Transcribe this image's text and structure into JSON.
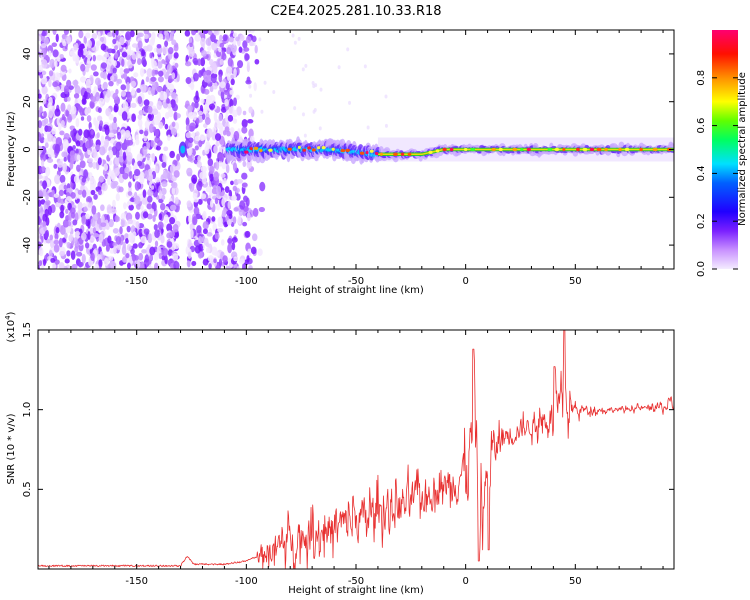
{
  "title": "C2E4.2025.281.10.33.R18",
  "colors": {
    "trace": "#e83030",
    "axis": "#000000",
    "background": "#ffffff"
  },
  "chart_data": [
    {
      "type": "heatmap",
      "name": "spectrogram",
      "xlabel": "Height of straight line (km)",
      "ylabel": "Frequency (Hz)",
      "xlim": [
        -195,
        95
      ],
      "ylim": [
        -50,
        50
      ],
      "xticks": [
        -150,
        -100,
        -50,
        0,
        50
      ],
      "yticks": [
        -40,
        -20,
        0,
        20,
        40
      ],
      "xtick_labels": [
        "-150",
        "-100",
        "-50",
        "0",
        "50"
      ],
      "ytick_labels": [
        "-40",
        "-20",
        "0",
        "20",
        "40"
      ],
      "colorbar": {
        "label": "Normalized spectral amplitude",
        "range": [
          0,
          1
        ],
        "ticks": [
          0.0,
          0.2,
          0.4,
          0.6,
          0.8
        ],
        "tick_labels": [
          "0.0",
          "0.2",
          "0.4",
          "0.6",
          "0.8"
        ],
        "colormap": [
          "#f0e0ff",
          "#a050ff",
          "#5000ff",
          "#0000ff",
          "#00ffff",
          "#00ff00",
          "#ffff00",
          "#ff8000",
          "#ff0000",
          "#ff0080"
        ]
      },
      "features": [
        {
          "description": "scattered noise speckles",
          "x_range": [
            -195,
            -95
          ],
          "y_range": [
            -50,
            50
          ]
        },
        {
          "description": "signal band near zero frequency",
          "points": [
            [
              -105,
              0
            ],
            [
              -80,
              0
            ],
            [
              -60,
              0
            ],
            [
              -40,
              -2
            ],
            [
              -20,
              -2
            ],
            [
              -10,
              0
            ],
            [
              0,
              0
            ],
            [
              20,
              0
            ],
            [
              50,
              0
            ],
            [
              95,
              0
            ]
          ]
        }
      ]
    },
    {
      "type": "line",
      "name": "snr",
      "xlabel": "Height of straight line (km)",
      "ylabel": "SNR (10 * v/v)",
      "scale_label": "(x10",
      "scale_exponent": "4",
      "xlim": [
        -195,
        95
      ],
      "ylim": [
        0,
        1.5
      ],
      "xticks": [
        -150,
        -100,
        -50,
        0,
        50
      ],
      "yticks": [
        0.5,
        1.0,
        1.5
      ],
      "xtick_labels": [
        "-150",
        "-100",
        "-50",
        "0",
        "50"
      ],
      "ytick_labels": [
        "0.5",
        "1.0",
        "1.5"
      ],
      "series": [
        {
          "name": "SNR",
          "color": "#e83030",
          "envelope_x": [
            -195,
            -130,
            -127,
            -124,
            -110,
            -100,
            -95,
            -90,
            -80,
            -70,
            -60,
            -50,
            -40,
            -30,
            -20,
            -10,
            -5,
            0,
            4,
            6,
            8,
            10,
            15,
            20,
            30,
            40,
            45,
            50,
            60,
            70,
            80,
            95
          ],
          "envelope_y": [
            0.02,
            0.02,
            0.08,
            0.03,
            0.03,
            0.05,
            0.08,
            0.12,
            0.18,
            0.22,
            0.26,
            0.3,
            0.36,
            0.4,
            0.46,
            0.52,
            0.58,
            0.62,
            0.9,
            0.5,
            0.35,
            0.7,
            0.8,
            0.86,
            0.9,
            0.96,
            1.0,
            1.0,
            1.0,
            1.0,
            1.01,
            1.02
          ],
          "noise_y": [
            0.02,
            0.02,
            0.04,
            0.02,
            0.02,
            0.05,
            0.1,
            0.18,
            0.22,
            0.24,
            0.26,
            0.26,
            0.28,
            0.28,
            0.22,
            0.18,
            0.35,
            0.3,
            0.5,
            0.4,
            0.4,
            0.3,
            0.22,
            0.16,
            0.12,
            0.2,
            0.3,
            0.08,
            0.04,
            0.03,
            0.03,
            0.08
          ]
        }
      ]
    }
  ]
}
